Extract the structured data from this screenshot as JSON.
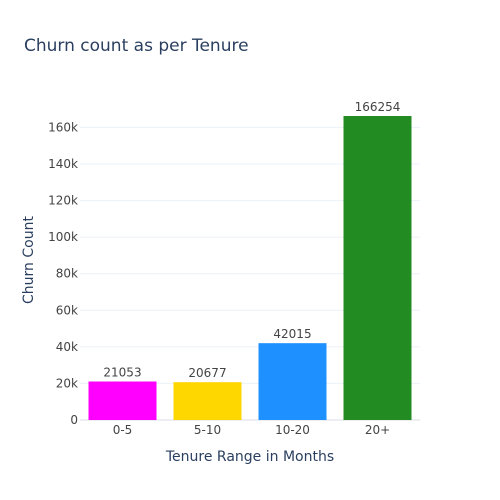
{
  "chart_data": {
    "type": "bar",
    "title": "Churn count as per Tenure",
    "xlabel": "Tenure Range in Months",
    "ylabel": "Churn Count",
    "categories": [
      "0-5",
      "5-10",
      "10-20",
      "20+"
    ],
    "values": [
      21053,
      20677,
      42015,
      166254
    ],
    "data_labels": [
      "21053",
      "20677",
      "42015",
      "166254"
    ],
    "colors": [
      "#ff00ff",
      "#ffd700",
      "#1e90ff",
      "#228b22"
    ],
    "ylim": [
      0,
      175000
    ],
    "yticks": [
      0,
      20000,
      40000,
      60000,
      80000,
      100000,
      120000,
      140000,
      160000
    ],
    "ytick_labels": [
      "0",
      "20k",
      "40k",
      "60k",
      "80k",
      "100k",
      "120k",
      "140k",
      "160k"
    ],
    "grid": true,
    "legend": "none"
  }
}
